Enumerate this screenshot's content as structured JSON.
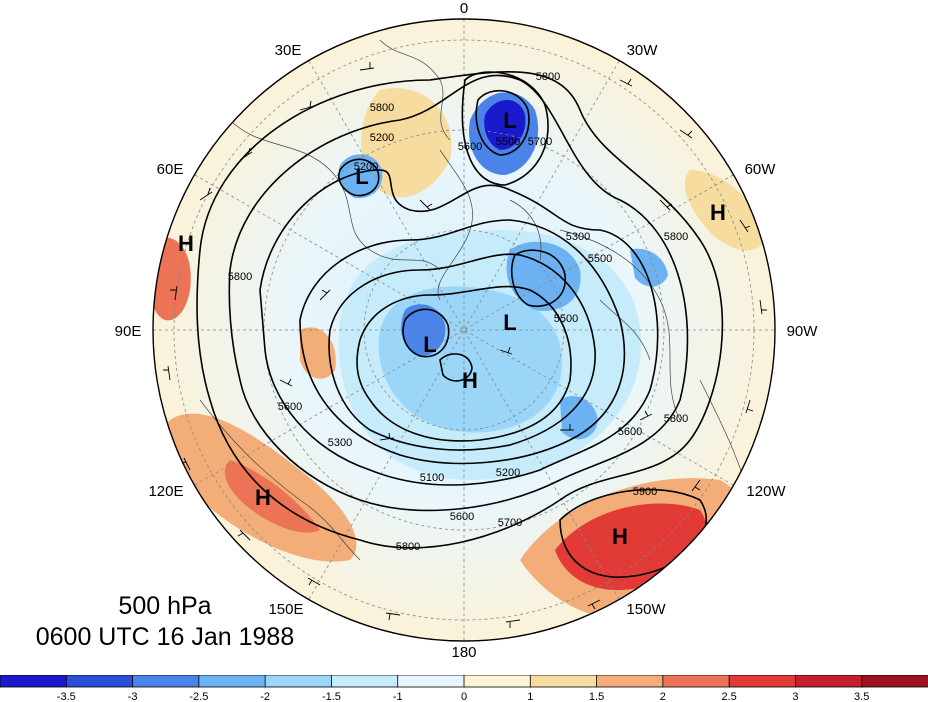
{
  "title": {
    "level": "500 hPa",
    "time": "0600 UTC 16 Jan 1988"
  },
  "longitude_labels": [
    "0",
    "30W",
    "60W",
    "90W",
    "120W",
    "150W",
    "180",
    "150E",
    "120E",
    "90E",
    "60E",
    "30E"
  ],
  "pressure_centers": [
    "L",
    "L",
    "L",
    "L",
    "H",
    "H",
    "H",
    "H",
    "H"
  ],
  "contour_labels": [
    "5800",
    "5800",
    "5700",
    "5600",
    "5500",
    "5300",
    "5200",
    "5100",
    "5200",
    "5600",
    "5700",
    "5800",
    "5900",
    "5600",
    "5500",
    "5800",
    "5600",
    "5800",
    "5300",
    "5500",
    "5200",
    "5800"
  ],
  "colorbar": {
    "tick_labels": [
      "-3.5",
      "-3",
      "-2.5",
      "-2",
      "-1.5",
      "-1",
      "0",
      "1",
      "1.5",
      "2",
      "2.5",
      "3",
      "3.5"
    ],
    "colors": [
      "#1a1acc",
      "#2b4fd8",
      "#4a84e8",
      "#6cb2f2",
      "#9bd6f8",
      "#c6ecfb",
      "#e6f6fc",
      "#fbf4d6",
      "#f7dca0",
      "#f2ad78",
      "#ec7356",
      "#e23a36",
      "#c41f2a",
      "#9c1020"
    ]
  }
}
